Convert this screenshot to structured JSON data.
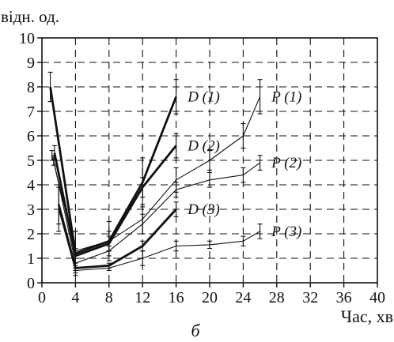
{
  "chart_data": {
    "type": "line",
    "ylabel": "відн. од.",
    "xlabel": "Час, хв",
    "caption": "б",
    "xlim": [
      0,
      40
    ],
    "ylim": [
      0,
      10
    ],
    "x_ticks": [
      "0",
      "4",
      "8",
      "12",
      "16",
      "20",
      "24",
      "28",
      "32",
      "36",
      "40"
    ],
    "y_ticks": [
      "0",
      "1",
      "2",
      "3",
      "4",
      "5",
      "6",
      "7",
      "8",
      "9",
      "10"
    ],
    "grid": "dashed",
    "series": [
      {
        "name": "D (1)",
        "style": "bold",
        "label_at": [
          17,
          7.6
        ],
        "points": [
          [
            1,
            8.0,
            0.6
          ],
          [
            4,
            1.2,
            0.9
          ],
          [
            8,
            1.7,
            0.8
          ],
          [
            12,
            4.1,
            1.0
          ],
          [
            16,
            7.6,
            0.7
          ]
        ]
      },
      {
        "name": "D (2)",
        "style": "bold",
        "label_at": [
          17,
          5.6
        ],
        "points": [
          [
            1.5,
            5.3,
            0.3
          ],
          [
            4,
            1.1,
            0.3
          ],
          [
            8,
            1.6,
            0.3
          ],
          [
            12,
            3.9,
            0.4
          ],
          [
            16,
            5.6,
            0.5
          ]
        ]
      },
      {
        "name": "D (3)",
        "style": "bold",
        "label_at": [
          17,
          3.0
        ],
        "points": [
          [
            2,
            3.2,
            0.8
          ],
          [
            4,
            0.6,
            0.1
          ],
          [
            8,
            0.7,
            0.1
          ],
          [
            12,
            1.5,
            0.2
          ],
          [
            16,
            3.0,
            0.3
          ]
        ]
      },
      {
        "name": "P (1)",
        "style": "thin",
        "label_at": [
          27,
          7.6
        ],
        "points": [
          [
            1.2,
            5.2,
            0.2
          ],
          [
            4,
            1.3,
            0.8
          ],
          [
            8,
            1.7,
            0.4
          ],
          [
            12,
            2.6,
            0.6
          ],
          [
            16,
            4.2,
            0.5
          ],
          [
            20,
            5.0,
            0.4
          ],
          [
            24,
            6.0,
            0.5
          ],
          [
            26,
            7.6,
            0.7
          ]
        ]
      },
      {
        "name": "P (2)",
        "style": "thin",
        "label_at": [
          27,
          4.9
        ],
        "points": [
          [
            1.4,
            5.0,
            0.2
          ],
          [
            4,
            0.8,
            0.2
          ],
          [
            8,
            1.3,
            0.2
          ],
          [
            12,
            2.4,
            0.4
          ],
          [
            16,
            3.8,
            0.3
          ],
          [
            20,
            4.2,
            0.3
          ],
          [
            24,
            4.4,
            0.3
          ],
          [
            26,
            4.9,
            0.3
          ]
        ]
      },
      {
        "name": "P (3)",
        "style": "thin",
        "label_at": [
          27,
          2.1
        ],
        "points": [
          [
            2,
            3.0,
            0.9
          ],
          [
            4,
            0.5,
            0.1
          ],
          [
            8,
            0.6,
            0.1
          ],
          [
            12,
            1.0,
            0.3
          ],
          [
            16,
            1.5,
            0.2
          ],
          [
            20,
            1.55,
            0.15
          ],
          [
            24,
            1.7,
            0.2
          ],
          [
            26,
            2.1,
            0.3
          ]
        ]
      }
    ]
  }
}
